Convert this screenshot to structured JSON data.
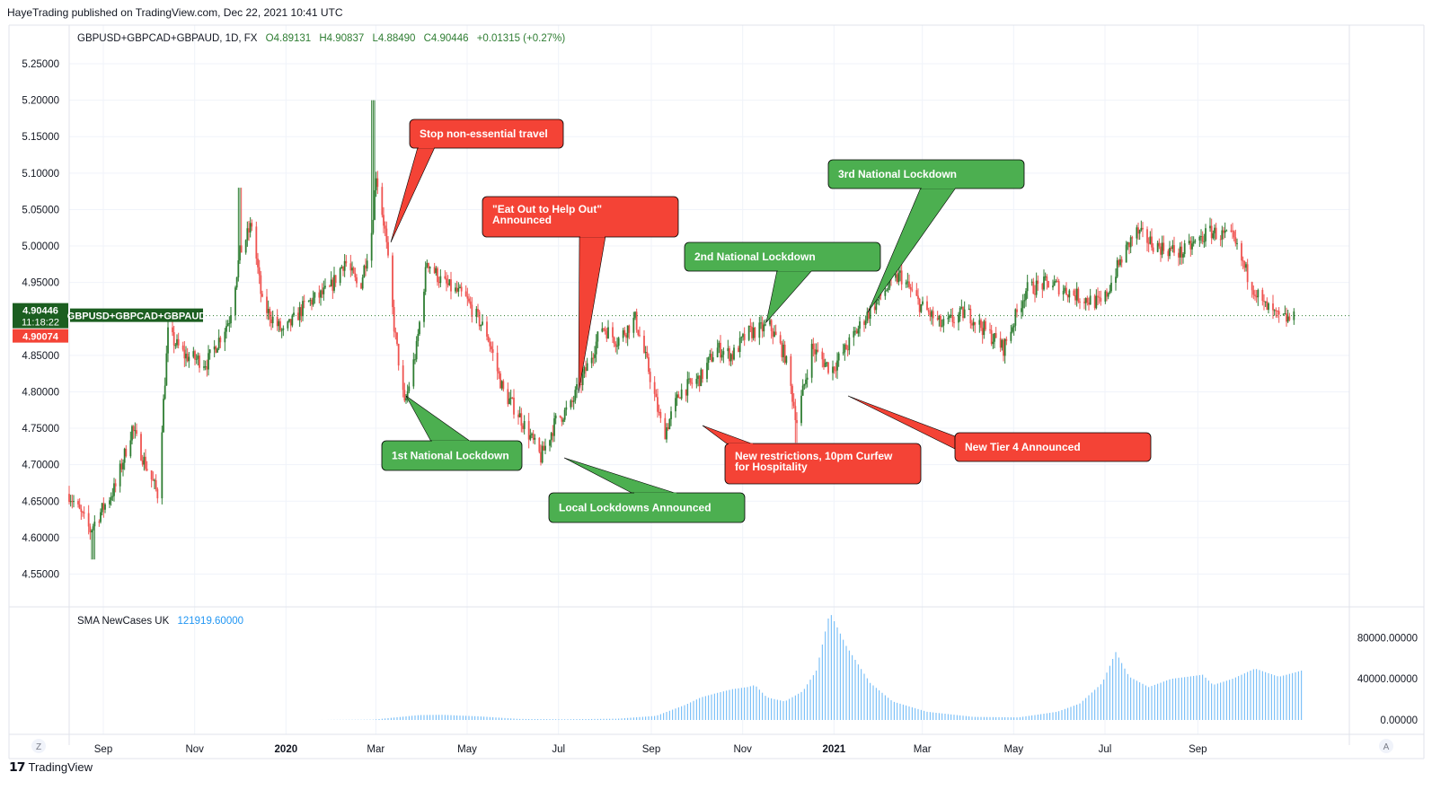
{
  "caption": "HayeTrading published on TradingView.com, Dec 22, 2021 10:41 UTC",
  "brand": "TradingView",
  "colors": {
    "up": "#26a69a",
    "up_candle": "#2e7d32",
    "down": "#ef5350",
    "callout_red": "#f44336",
    "callout_green": "#4caf50",
    "sma": "#64b5f6",
    "grid": "#f0f3fa",
    "price_label_bg": "#1b5e20"
  },
  "main_legend": {
    "symbol": "GBPUSD+GBPCAD+GBPAUD, 1D, FX",
    "o": "O4.89131",
    "h": "H4.90837",
    "l": "L4.88490",
    "c": "C4.90446",
    "chg": "+0.01315 (+0.27%)"
  },
  "sub_legend": {
    "name": "SMA NewCases UK",
    "value": "121919.60000"
  },
  "price_labels": {
    "last": "4.90446",
    "countdown": "11:18:22",
    "symbol_tag": "GBPUSD+GBPCAD+GBPAUD",
    "other": "4.90074"
  },
  "corner_buttons": {
    "left": "Z",
    "right": "A"
  },
  "chart_data": [
    {
      "type": "candlestick",
      "y_axis_ticks": [
        5.25,
        5.2,
        5.15,
        5.1,
        5.05,
        5.0,
        4.95,
        4.9,
        4.85,
        4.8,
        4.75,
        4.7,
        4.65,
        4.6,
        4.55
      ],
      "y_axis_labels": [
        "5.25000",
        "5.20000",
        "5.15000",
        "5.10000",
        "5.05000",
        "5.00000",
        "4.95000",
        "4.90000",
        "4.85000",
        "4.80000",
        "4.75000",
        "4.70000",
        "4.65000",
        "4.60000",
        "4.55000"
      ],
      "ylim": [
        4.505,
        5.303
      ],
      "x_axis_labels": [
        "Sep",
        "Nov",
        "2020",
        "Mar",
        "May",
        "Jul",
        "Sep",
        "Nov",
        "2021",
        "Mar",
        "May",
        "Jul",
        "Sep"
      ],
      "x_axis_bold": [
        "2020",
        "2021"
      ],
      "x_range": [
        "2019-08-20",
        "2021-12-22"
      ],
      "price_keypoints": [
        [
          "2019-08-20",
          4.66
        ],
        [
          "2019-09-03",
          4.61
        ],
        [
          "2019-09-20",
          4.67
        ],
        [
          "2019-10-01",
          4.75
        ],
        [
          "2019-10-10",
          4.7
        ],
        [
          "2019-10-18",
          4.66
        ],
        [
          "2019-10-25",
          4.88
        ],
        [
          "2019-11-05",
          4.85
        ],
        [
          "2019-11-20",
          4.84
        ],
        [
          "2019-12-05",
          4.9
        ],
        [
          "2019-12-12",
          4.99
        ],
        [
          "2019-12-20",
          5.03
        ],
        [
          "2019-12-27",
          4.92
        ],
        [
          "2020-01-10",
          4.88
        ],
        [
          "2020-01-25",
          4.92
        ],
        [
          "2020-02-10",
          4.94
        ],
        [
          "2020-02-20",
          4.98
        ],
        [
          "2020-03-01",
          4.94
        ],
        [
          "2020-03-09",
          5.02
        ],
        [
          "2020-03-12",
          5.1
        ],
        [
          "2020-03-18",
          5.02
        ],
        [
          "2020-03-24",
          4.89
        ],
        [
          "2020-03-31",
          4.78
        ],
        [
          "2020-04-08",
          4.86
        ],
        [
          "2020-04-15",
          4.98
        ],
        [
          "2020-04-25",
          4.95
        ],
        [
          "2020-05-10",
          4.93
        ],
        [
          "2020-05-25",
          4.88
        ],
        [
          "2020-06-05",
          4.8
        ],
        [
          "2020-06-15",
          4.77
        ],
        [
          "2020-06-30",
          4.71
        ],
        [
          "2020-07-10",
          4.76
        ],
        [
          "2020-07-20",
          4.78
        ],
        [
          "2020-08-01",
          4.84
        ],
        [
          "2020-08-10",
          4.89
        ],
        [
          "2020-08-20",
          4.87
        ],
        [
          "2020-09-01",
          4.9
        ],
        [
          "2020-09-10",
          4.83
        ],
        [
          "2020-09-20",
          4.74
        ],
        [
          "2020-10-01",
          4.8
        ],
        [
          "2020-10-15",
          4.82
        ],
        [
          "2020-10-25",
          4.86
        ],
        [
          "2020-11-05",
          4.85
        ],
        [
          "2020-11-15",
          4.88
        ],
        [
          "2020-11-30",
          4.89
        ],
        [
          "2020-12-10",
          4.85
        ],
        [
          "2020-12-18",
          4.76
        ],
        [
          "2020-12-28",
          4.86
        ],
        [
          "2021-01-10",
          4.83
        ],
        [
          "2021-01-20",
          4.86
        ],
        [
          "2021-02-01",
          4.9
        ],
        [
          "2021-02-15",
          4.94
        ],
        [
          "2021-02-25",
          4.96
        ],
        [
          "2021-03-10",
          4.92
        ],
        [
          "2021-03-25",
          4.89
        ],
        [
          "2021-04-10",
          4.91
        ],
        [
          "2021-04-25",
          4.88
        ],
        [
          "2021-05-05",
          4.86
        ],
        [
          "2021-05-20",
          4.94
        ],
        [
          "2021-06-05",
          4.95
        ],
        [
          "2021-06-25",
          4.93
        ],
        [
          "2021-07-10",
          4.92
        ],
        [
          "2021-07-20",
          4.97
        ],
        [
          "2021-08-01",
          5.02
        ],
        [
          "2021-08-15",
          5.0
        ],
        [
          "2021-09-01",
          4.99
        ],
        [
          "2021-09-20",
          5.02
        ],
        [
          "2021-10-05",
          5.01
        ],
        [
          "2021-10-15",
          4.96
        ],
        [
          "2021-10-25",
          4.92
        ],
        [
          "2021-11-05",
          4.9
        ],
        [
          "2021-11-15",
          4.9
        ]
      ],
      "spikes": [
        {
          "date": "2020-03-10",
          "high": 5.2
        },
        {
          "date": "2019-09-05",
          "low": 4.57
        },
        {
          "date": "2019-12-12",
          "high": 5.08
        },
        {
          "date": "2020-12-18",
          "low": 4.73
        }
      ],
      "last_price": 4.90446,
      "annotations": [
        {
          "text": "Stop non-essential travel",
          "color": "red",
          "anchor_date": "2020-03-18",
          "anchor_price": 4.98
        },
        {
          "text": "\"Eat Out to Help Out\"\nAnnounced",
          "color": "red",
          "anchor_date": "2020-07-05",
          "anchor_price": 4.8
        },
        {
          "text": "3rd National Lockdown",
          "color": "green",
          "anchor_date": "2020-12-28",
          "anchor_price": 4.86
        },
        {
          "text": "2nd National Lockdown",
          "color": "green",
          "anchor_date": "2020-10-26",
          "anchor_price": 4.86
        },
        {
          "text": "1st National Lockdown",
          "color": "green",
          "anchor_date": "2020-03-25",
          "anchor_price": 4.77
        },
        {
          "text": "Local Lockdowns Announced",
          "color": "green",
          "anchor_date": "2020-06-30",
          "anchor_price": 4.69
        },
        {
          "text": "New restrictions, 10pm Curfew\nfor Hospitality",
          "color": "red",
          "anchor_date": "2020-09-22",
          "anchor_price": 4.73
        },
        {
          "text": "New Tier 4 Announced",
          "color": "red",
          "anchor_date": "2020-12-19",
          "anchor_price": 4.78
        }
      ]
    },
    {
      "type": "bar",
      "name": "SMA NewCases UK",
      "y_axis_labels": [
        "80000.00000",
        "40000.00000",
        "0.00000"
      ],
      "y_axis_ticks": [
        80000,
        40000,
        0
      ],
      "ylim": [
        0,
        108000
      ],
      "keypoints": [
        [
          "2020-02-01",
          0
        ],
        [
          "2020-03-10",
          300
        ],
        [
          "2020-03-25",
          2500
        ],
        [
          "2020-04-10",
          4800
        ],
        [
          "2020-04-25",
          5000
        ],
        [
          "2020-05-20",
          3500
        ],
        [
          "2020-06-15",
          1000
        ],
        [
          "2020-07-15",
          600
        ],
        [
          "2020-08-20",
          1200
        ],
        [
          "2020-09-15",
          4000
        ],
        [
          "2020-10-05",
          15000
        ],
        [
          "2020-10-15",
          22000
        ],
        [
          "2020-10-25",
          26000
        ],
        [
          "2020-11-05",
          30000
        ],
        [
          "2020-11-15",
          32000
        ],
        [
          "2020-11-20",
          34000
        ],
        [
          "2020-11-28",
          22000
        ],
        [
          "2020-12-10",
          18000
        ],
        [
          "2020-12-22",
          28000
        ],
        [
          "2020-12-31",
          48000
        ],
        [
          "2021-01-06",
          86000
        ],
        [
          "2021-01-09",
          105000
        ],
        [
          "2021-01-20",
          72000
        ],
        [
          "2021-02-05",
          36000
        ],
        [
          "2021-02-20",
          18000
        ],
        [
          "2021-03-15",
          8000
        ],
        [
          "2021-04-15",
          3000
        ],
        [
          "2021-05-15",
          2500
        ],
        [
          "2021-06-10",
          8000
        ],
        [
          "2021-06-25",
          16000
        ],
        [
          "2021-07-10",
          36000
        ],
        [
          "2021-07-19",
          66000
        ],
        [
          "2021-07-28",
          42000
        ],
        [
          "2021-08-10",
          32000
        ],
        [
          "2021-08-25",
          40000
        ],
        [
          "2021-09-05",
          42000
        ],
        [
          "2021-09-15",
          44000
        ],
        [
          "2021-09-22",
          34000
        ],
        [
          "2021-10-05",
          40000
        ],
        [
          "2021-10-20",
          50000
        ],
        [
          "2021-11-05",
          42000
        ],
        [
          "2021-11-20",
          48000
        ]
      ]
    }
  ]
}
